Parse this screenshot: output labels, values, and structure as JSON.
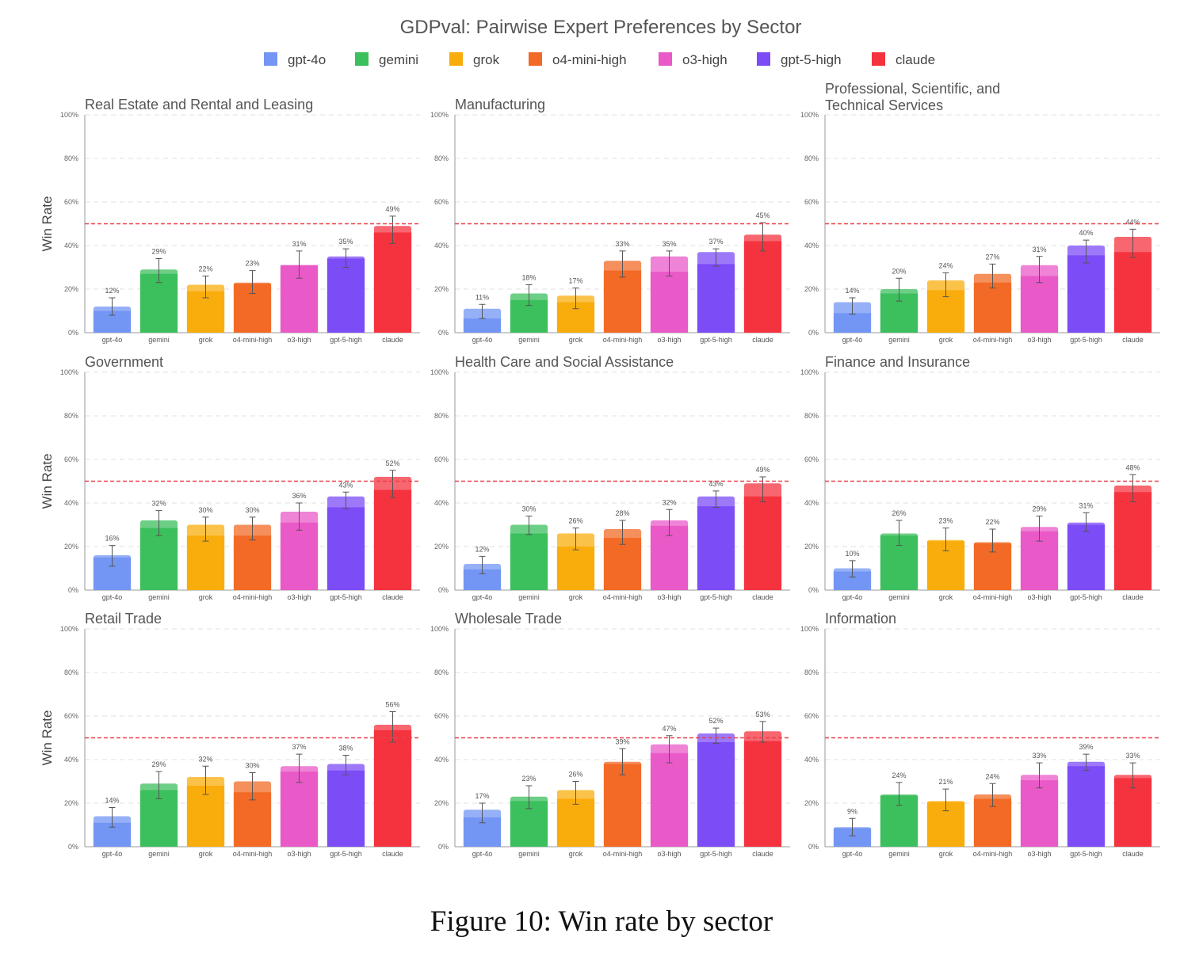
{
  "figure": {
    "title": "GDPval: Pairwise Expert Preferences by Sector",
    "caption": "Figure 10: Win rate by sector"
  },
  "legend": [
    {
      "name": "gpt-4o",
      "color": "#7395f4"
    },
    {
      "name": "gemini",
      "color": "#3cbf5d"
    },
    {
      "name": "grok",
      "color": "#f9ad0c"
    },
    {
      "name": "o4-mini-high",
      "color": "#f26a25"
    },
    {
      "name": "o3-high",
      "color": "#e95ac8"
    },
    {
      "name": "gpt-5-high",
      "color": "#7c4cf7"
    },
    {
      "name": "claude",
      "color": "#f5333f"
    }
  ],
  "chart_data": [
    {
      "type": "bar",
      "title": "Real Estate and Rental and Leasing",
      "ylabel": "Win Rate",
      "ylim": [
        0,
        100
      ],
      "yticks": [
        "0%",
        "20%",
        "40%",
        "60%",
        "80%",
        "100%"
      ],
      "reference_line": 50,
      "categories": [
        "gpt-4o",
        "gemini",
        "grok",
        "o4-mini-high",
        "o3-high",
        "gpt-5-high",
        "claude"
      ],
      "values": [
        12,
        29,
        22,
        23,
        31,
        35,
        49
      ],
      "labels": [
        "12%",
        "29%",
        "22%",
        "23%",
        "31%",
        "35%",
        "49%"
      ],
      "lower_segment": [
        10,
        27,
        19,
        22.5,
        31,
        34,
        46
      ],
      "error_low": [
        8,
        23,
        16,
        18,
        25,
        30,
        41
      ],
      "error_high": [
        16,
        34,
        26,
        28.5,
        37.5,
        38.5,
        53.5
      ]
    },
    {
      "type": "bar",
      "title": "Manufacturing",
      "ylabel": "",
      "ylim": [
        0,
        100
      ],
      "yticks": [
        "0%",
        "20%",
        "40%",
        "60%",
        "80%",
        "100%"
      ],
      "reference_line": 50,
      "categories": [
        "gpt-4o",
        "gemini",
        "grok",
        "o4-mini-high",
        "o3-high",
        "gpt-5-high",
        "claude"
      ],
      "values": [
        11,
        18,
        17,
        33,
        35,
        37,
        45
      ],
      "labels": [
        "11%",
        "18%",
        "17%",
        "33%",
        "35%",
        "37%",
        "45%"
      ],
      "lower_segment": [
        6.5,
        15,
        14,
        28.5,
        28,
        31.5,
        42
      ],
      "error_low": [
        6.5,
        12.5,
        11,
        25.5,
        26,
        30.5,
        37.5
      ],
      "error_high": [
        13,
        22,
        20.5,
        37.5,
        37.5,
        38.5,
        50.5
      ]
    },
    {
      "type": "bar",
      "title": "Professional, Scientific, and\nTechnical Services",
      "ylabel": "",
      "ylim": [
        0,
        100
      ],
      "yticks": [
        "0%",
        "20%",
        "40%",
        "60%",
        "80%",
        "100%"
      ],
      "reference_line": 50,
      "categories": [
        "gpt-4o",
        "gemini",
        "grok",
        "o4-mini-high",
        "o3-high",
        "gpt-5-high",
        "claude"
      ],
      "values": [
        14,
        20,
        24,
        27,
        31,
        40,
        44
      ],
      "labels": [
        "14%",
        "20%",
        "24%",
        "27%",
        "31%",
        "40%",
        "44%"
      ],
      "lower_segment": [
        9,
        18,
        19.5,
        23,
        26,
        35.5,
        37
      ],
      "error_low": [
        8.5,
        14.5,
        16.5,
        20.5,
        23,
        32,
        34.5
      ],
      "error_high": [
        16,
        25,
        27.5,
        31.5,
        35,
        42.5,
        47.5
      ]
    },
    {
      "type": "bar",
      "title": "Government",
      "ylabel": "Win Rate",
      "ylim": [
        0,
        100
      ],
      "yticks": [
        "0%",
        "20%",
        "40%",
        "60%",
        "80%",
        "100%"
      ],
      "reference_line": 50,
      "categories": [
        "gpt-4o",
        "gemini",
        "grok",
        "o4-mini-high",
        "o3-high",
        "gpt-5-high",
        "claude"
      ],
      "values": [
        16,
        32,
        30,
        30,
        36,
        43,
        52
      ],
      "labels": [
        "16%",
        "32%",
        "30%",
        "30%",
        "36%",
        "43%",
        "52%"
      ],
      "lower_segment": [
        15,
        28.5,
        25,
        25,
        31,
        38,
        46
      ],
      "error_low": [
        11,
        25,
        22.5,
        23,
        27.5,
        37.5,
        42.5
      ],
      "error_high": [
        20.5,
        36.5,
        33.5,
        33.5,
        40,
        45,
        55
      ]
    },
    {
      "type": "bar",
      "title": "Health Care and Social Assistance",
      "ylabel": "",
      "ylim": [
        0,
        100
      ],
      "yticks": [
        "0%",
        "20%",
        "40%",
        "60%",
        "80%",
        "100%"
      ],
      "reference_line": 50,
      "categories": [
        "gpt-4o",
        "gemini",
        "grok",
        "o4-mini-high",
        "o3-high",
        "gpt-5-high",
        "claude"
      ],
      "values": [
        12,
        30,
        26,
        28,
        32,
        43,
        49
      ],
      "labels": [
        "12%",
        "30%",
        "26%",
        "28%",
        "32%",
        "43%",
        "49%"
      ],
      "lower_segment": [
        9.5,
        26,
        20,
        24,
        29.5,
        38.5,
        43
      ],
      "error_low": [
        7.5,
        25.5,
        18.5,
        21,
        25,
        38,
        40.5
      ],
      "error_high": [
        15.5,
        34,
        28.5,
        32,
        37,
        45.5,
        52
      ]
    },
    {
      "type": "bar",
      "title": "Finance and Insurance",
      "ylabel": "",
      "ylim": [
        0,
        100
      ],
      "yticks": [
        "0%",
        "20%",
        "40%",
        "60%",
        "80%",
        "100%"
      ],
      "reference_line": 50,
      "categories": [
        "gpt-4o",
        "gemini",
        "grok",
        "o4-mini-high",
        "o3-high",
        "gpt-5-high",
        "claude"
      ],
      "values": [
        10,
        26,
        23,
        22,
        29,
        31,
        48
      ],
      "labels": [
        "10%",
        "26%",
        "23%",
        "22%",
        "29%",
        "31%",
        "48%"
      ],
      "lower_segment": [
        8.5,
        25,
        22.5,
        21.5,
        27,
        30,
        45
      ],
      "error_low": [
        6,
        20.5,
        18,
        17.5,
        22.5,
        27,
        40.5
      ],
      "error_high": [
        13.5,
        32,
        28.5,
        28,
        34,
        35.5,
        53
      ]
    },
    {
      "type": "bar",
      "title": "Retail Trade",
      "ylabel": "Win Rate",
      "ylim": [
        0,
        100
      ],
      "yticks": [
        "0%",
        "20%",
        "40%",
        "60%",
        "80%",
        "100%"
      ],
      "reference_line": 50,
      "categories": [
        "gpt-4o",
        "gemini",
        "grok",
        "o4-mini-high",
        "o3-high",
        "gpt-5-high",
        "claude"
      ],
      "values": [
        14,
        29,
        32,
        30,
        37,
        38,
        56
      ],
      "labels": [
        "14%",
        "29%",
        "32%",
        "30%",
        "37%",
        "38%",
        "56%"
      ],
      "lower_segment": [
        11,
        26,
        28,
        25,
        34.5,
        35,
        53.5
      ],
      "error_low": [
        9,
        22,
        24,
        21.5,
        29.5,
        33,
        48
      ],
      "error_high": [
        18,
        34.5,
        37,
        34,
        42.5,
        42,
        62
      ]
    },
    {
      "type": "bar",
      "title": "Wholesale Trade",
      "ylabel": "",
      "ylim": [
        0,
        100
      ],
      "yticks": [
        "0%",
        "20%",
        "40%",
        "60%",
        "80%",
        "100%"
      ],
      "reference_line": 50,
      "categories": [
        "gpt-4o",
        "gemini",
        "grok",
        "o4-mini-high",
        "o3-high",
        "gpt-5-high",
        "claude"
      ],
      "values": [
        17,
        23,
        26,
        39,
        47,
        52,
        53
      ],
      "labels": [
        "17%",
        "23%",
        "26%",
        "39%",
        "47%",
        "52%",
        "53%"
      ],
      "lower_segment": [
        13.5,
        21,
        22,
        38,
        43,
        48,
        48.5
      ],
      "error_low": [
        11,
        17.5,
        19.5,
        33,
        38.5,
        47.5,
        48
      ],
      "error_high": [
        20,
        28,
        30,
        45,
        51,
        54.5,
        57.5
      ]
    },
    {
      "type": "bar",
      "title": "Information",
      "ylabel": "",
      "ylim": [
        0,
        100
      ],
      "yticks": [
        "0%",
        "20%",
        "40%",
        "60%",
        "80%",
        "100%"
      ],
      "reference_line": 50,
      "categories": [
        "gpt-4o",
        "gemini",
        "grok",
        "o4-mini-high",
        "o3-high",
        "gpt-5-high",
        "claude"
      ],
      "values": [
        9,
        24,
        21,
        24,
        33,
        39,
        33
      ],
      "labels": [
        "9%",
        "24%",
        "21%",
        "24%",
        "33%",
        "39%",
        "33%"
      ],
      "lower_segment": [
        8.5,
        23.5,
        20.5,
        22,
        30.5,
        37,
        31.5
      ],
      "error_low": [
        5,
        19,
        16.5,
        18.5,
        27,
        35,
        27
      ],
      "error_high": [
        13,
        29.5,
        26.5,
        29,
        38.5,
        42.5,
        38.5
      ]
    }
  ]
}
